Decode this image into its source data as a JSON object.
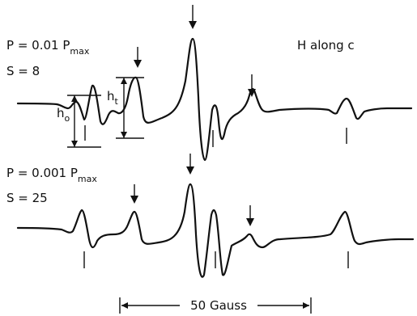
{
  "spectrum_top": {
    "power_label": "P = 0.01 P",
    "power_sub": "max",
    "sensitivity_label": "S = 8"
  },
  "spectrum_bottom": {
    "power_label": "P = 0.001 P",
    "power_sub": "max",
    "sensitivity_label": "S = 25"
  },
  "field_orientation_label": "H along c",
  "height_labels": {
    "h0": "h",
    "h0_sub": "o",
    "ht": "h",
    "ht_sub": "t"
  },
  "scale_bar_label": "50 Gauss"
}
